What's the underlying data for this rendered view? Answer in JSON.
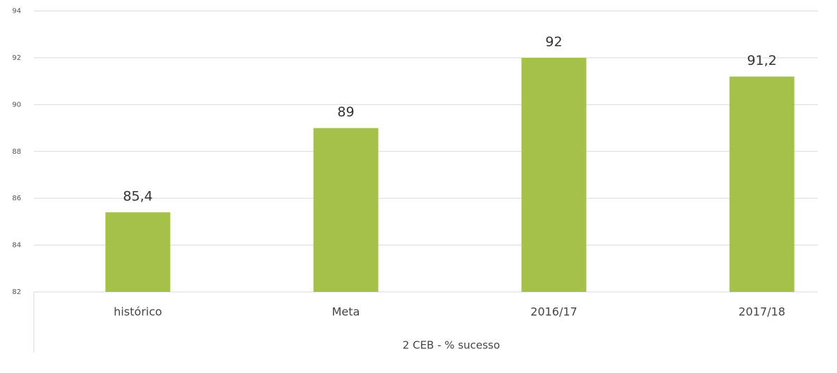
{
  "chart_data": {
    "type": "bar",
    "categories": [
      "histórico",
      "Meta",
      "2016/17",
      "2017/18"
    ],
    "values": [
      85.4,
      89,
      92,
      91.2
    ],
    "value_labels": [
      "85,4",
      "89",
      "92",
      "91,2"
    ],
    "color": "#a5c14a",
    "xlabel": "2 CEB - % sucesso",
    "ylim": [
      82,
      94
    ],
    "yticks": [
      82,
      84,
      86,
      88,
      90,
      92,
      94
    ],
    "grid": true
  }
}
